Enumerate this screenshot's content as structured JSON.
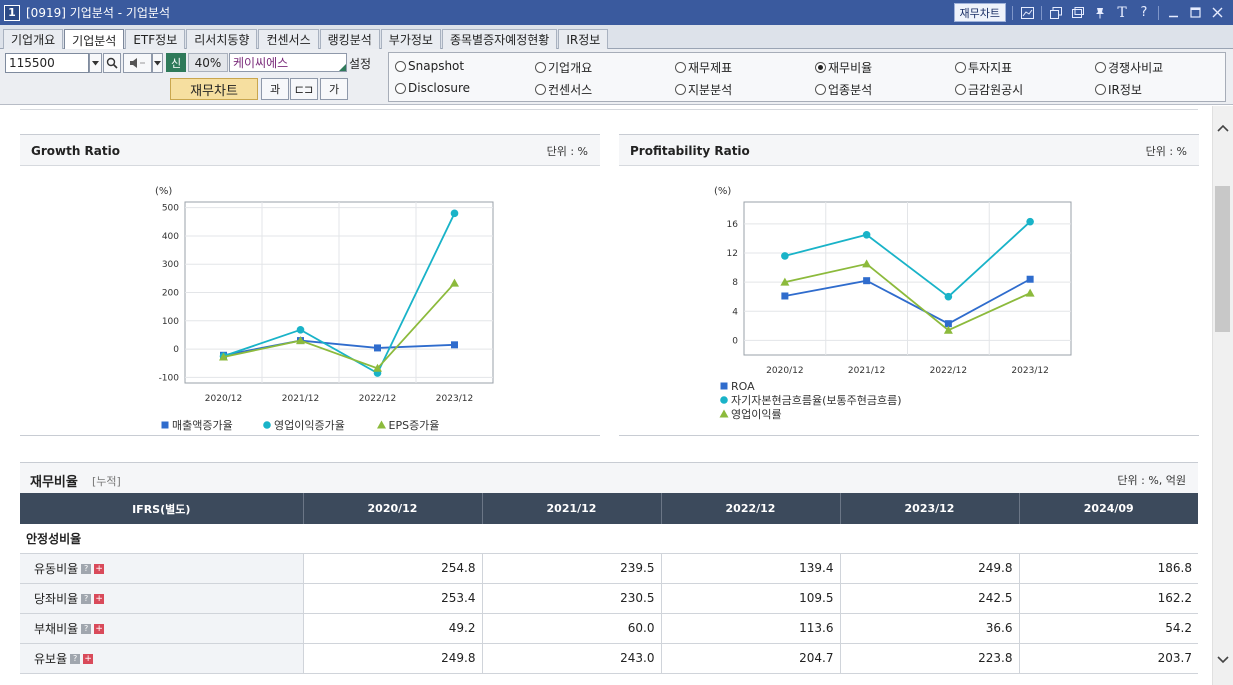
{
  "window": {
    "number": "1",
    "title": "[0919] 기업분석 - 기업분석",
    "fin_chart_button": "재무차트",
    "icons": [
      "chart-icon",
      "window-restore-icon",
      "tile-icon",
      "pin-icon",
      "font-icon",
      "help-icon",
      "minimize-icon",
      "maximize-icon",
      "close-icon"
    ]
  },
  "tabs": [
    {
      "label": "기업개요",
      "active": false
    },
    {
      "label": "기업분석",
      "active": true
    },
    {
      "label": "ETF정보",
      "active": false
    },
    {
      "label": "리서치동향",
      "active": false
    },
    {
      "label": "컨센서스",
      "active": false
    },
    {
      "label": "랭킹분석",
      "active": false
    },
    {
      "label": "부가정보",
      "active": false
    },
    {
      "label": "종목별증자예정현황",
      "active": false
    },
    {
      "label": "IR정보",
      "active": false
    }
  ],
  "toolbar": {
    "code": "115500",
    "shin": "신",
    "margin_pct": "40%",
    "company": "케이씨에스",
    "setting": "설정",
    "fin_chart": "재무차트",
    "tool_a": "과",
    "tool_b": "⊏⊐",
    "tool_c": "가"
  },
  "radios": [
    {
      "label": "Snapshot",
      "selected": false
    },
    {
      "label": "기업개요",
      "selected": false
    },
    {
      "label": "재무제표",
      "selected": false
    },
    {
      "label": "재무비율",
      "selected": true
    },
    {
      "label": "투자지표",
      "selected": false
    },
    {
      "label": "경쟁사비교",
      "selected": false
    },
    {
      "label": "Disclosure",
      "selected": false
    },
    {
      "label": "컨센서스",
      "selected": false
    },
    {
      "label": "지분분석",
      "selected": false
    },
    {
      "label": "업종분석",
      "selected": false
    },
    {
      "label": "금감원공시",
      "selected": false
    },
    {
      "label": "IR정보",
      "selected": false
    }
  ],
  "chart_data": [
    {
      "type": "line",
      "title": "Growth Ratio",
      "unit": "단위 : %",
      "ylabel": "(%)",
      "categories": [
        "2020/12",
        "2021/12",
        "2022/12",
        "2023/12"
      ],
      "ylim": [
        -120,
        520
      ],
      "yticks": [
        -100,
        0,
        100,
        200,
        300,
        400,
        500
      ],
      "series": [
        {
          "name": "매출액증가율",
          "color": "#2f6ccd",
          "marker": "square",
          "values": [
            -22,
            30,
            4,
            15
          ]
        },
        {
          "name": "영업이익증가율",
          "color": "#19b3c8",
          "marker": "circle",
          "values": [
            -25,
            68,
            -85,
            480
          ]
        },
        {
          "name": "EPS증가율",
          "color": "#8cba3c",
          "marker": "triangle",
          "values": [
            -28,
            30,
            -68,
            233
          ]
        }
      ],
      "legend": "bottom"
    },
    {
      "type": "line",
      "title": "Profitability Ratio",
      "unit": "단위 : %",
      "ylabel": "(%)",
      "categories": [
        "2020/12",
        "2021/12",
        "2022/12",
        "2023/12"
      ],
      "ylim": [
        -2,
        19
      ],
      "yticks": [
        0,
        4,
        8,
        12,
        16
      ],
      "series": [
        {
          "name": "ROA",
          "color": "#2f6ccd",
          "marker": "square",
          "values": [
            6.1,
            8.2,
            2.3,
            8.4
          ]
        },
        {
          "name": "자기자본현금흐름율(보통주현금흐름)",
          "color": "#19b3c8",
          "marker": "circle",
          "values": [
            11.6,
            14.5,
            6.0,
            16.3
          ]
        },
        {
          "name": "영업이익률",
          "color": "#8cba3c",
          "marker": "triangle",
          "values": [
            8.0,
            10.5,
            1.4,
            6.5
          ]
        }
      ],
      "legend": "bottom"
    }
  ],
  "ratio_table": {
    "title": "재무비율",
    "subtitle": "[누적]",
    "unit": "단위 : %, 억원",
    "header": [
      "IFRS(별도)",
      "2020/12",
      "2021/12",
      "2022/12",
      "2023/12",
      "2024/09"
    ],
    "section": "안정성비율",
    "rows": [
      {
        "label": "유동비율",
        "values": [
          "254.8",
          "239.5",
          "139.4",
          "249.8",
          "186.8"
        ]
      },
      {
        "label": "당좌비율",
        "values": [
          "253.4",
          "230.5",
          "109.5",
          "242.5",
          "162.2"
        ]
      },
      {
        "label": "부채비율",
        "values": [
          "49.2",
          "60.0",
          "113.6",
          "36.6",
          "54.2"
        ]
      },
      {
        "label": "유보율",
        "values": [
          "249.8",
          "243.0",
          "204.7",
          "223.8",
          "203.7"
        ]
      }
    ]
  }
}
